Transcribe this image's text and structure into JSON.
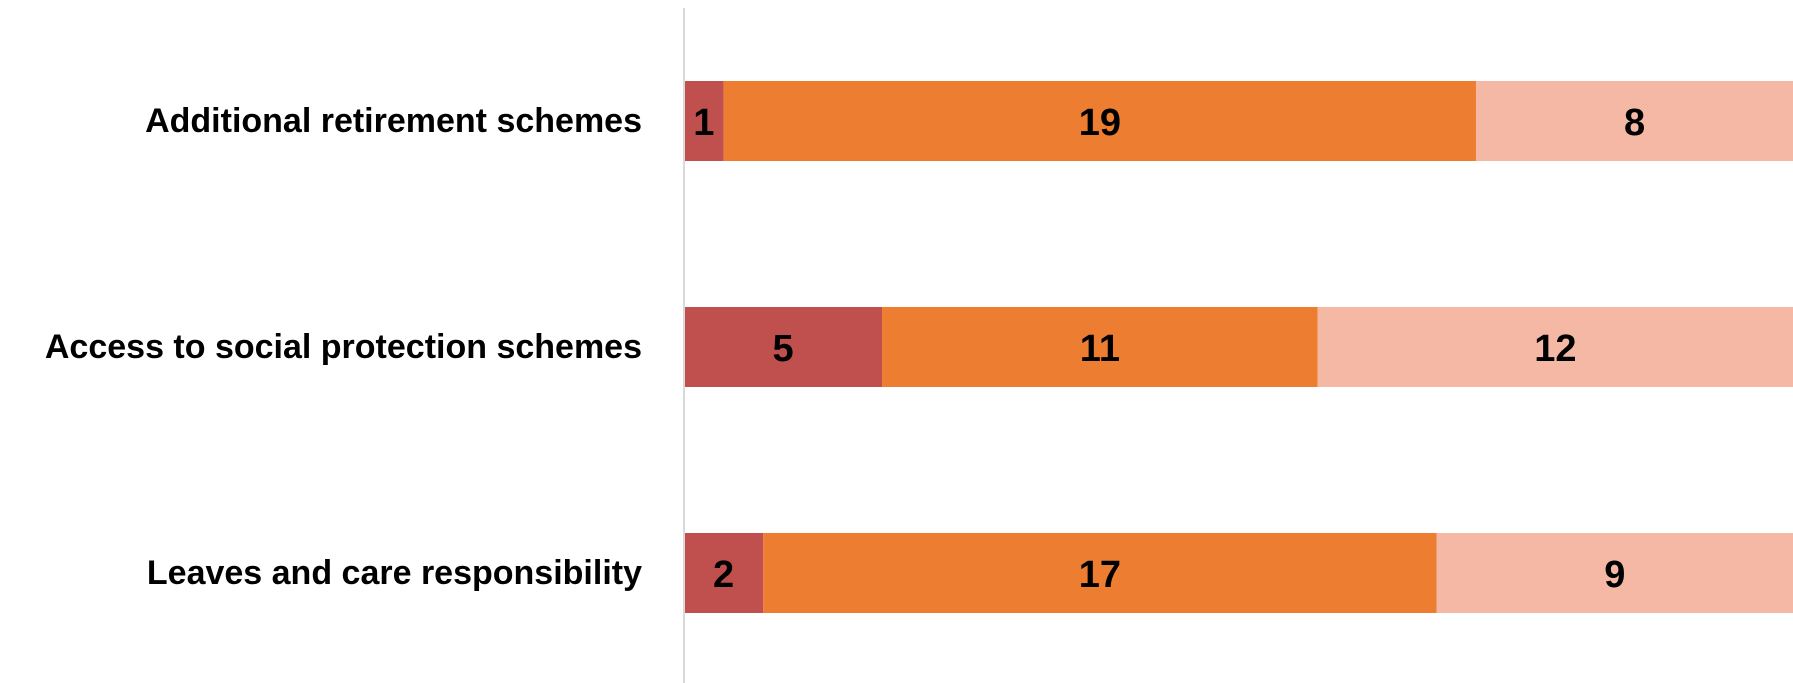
{
  "chart_data": {
    "type": "bar",
    "orientation": "horizontal",
    "stacked": true,
    "categories": [
      "Additional retirement schemes",
      "Access to social protection schemes",
      "Leaves and care responsibility"
    ],
    "series": [
      {
        "values": [
          1,
          5,
          2
        ],
        "color": "#C0504D"
      },
      {
        "values": [
          19,
          11,
          17
        ],
        "color": "#ED7D31"
      },
      {
        "values": [
          8,
          12,
          9
        ],
        "color": "#F4B8A4"
      }
    ],
    "xlim": [
      0,
      28
    ],
    "legend": "none",
    "grid": false
  }
}
